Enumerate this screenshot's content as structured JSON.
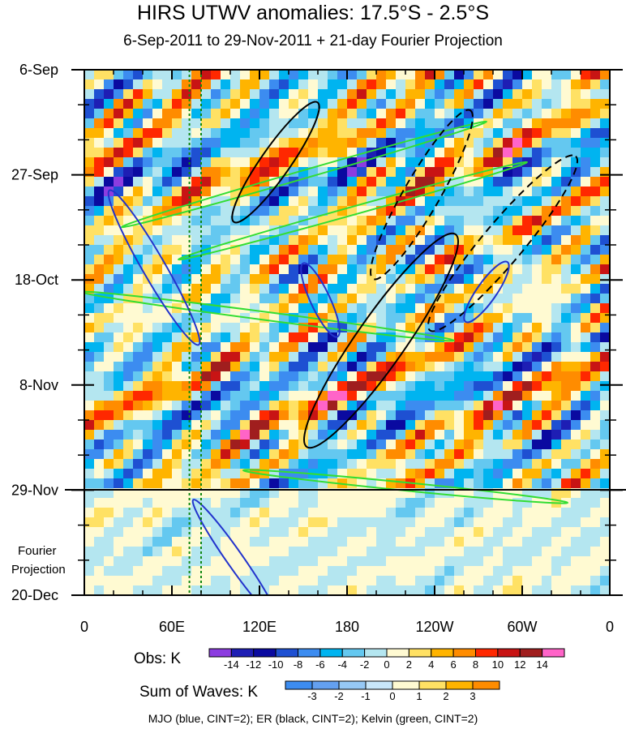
{
  "chart_data": {
    "type": "heatmap",
    "title": "HIRS UTWV anomalies: 17.5°S - 2.5°S",
    "subtitle": "6-Sep-2011 to 29-Nov-2011 + 21-day Fourier Projection",
    "x_ticks": [
      "0",
      "60E",
      "120E",
      "180",
      "120W",
      "60W",
      "0"
    ],
    "x_range": [
      0,
      360
    ],
    "y_ticks": [
      "6-Sep",
      "27-Sep",
      "18-Oct",
      "8-Nov",
      "29-Nov",
      "20-Dec"
    ],
    "y_range": [
      "2011-09-06",
      "2011-12-20"
    ],
    "observation_end": "2011-11-29",
    "projection_label_1": "Fourier",
    "projection_label_2": "Projection",
    "obs_colorbar": {
      "title": "Obs: K",
      "levels": [
        "-14",
        "-12",
        "-10",
        "-8",
        "-6",
        "-4",
        "-2",
        "0",
        "2",
        "4",
        "6",
        "8",
        "10",
        "12",
        "14"
      ],
      "colors": [
        "#8c3ce0",
        "#1e1eb4",
        "#0a0aa0",
        "#1e50d2",
        "#3c8cf0",
        "#00b4f0",
        "#64c8f0",
        "#b4e6f0",
        "#fffad2",
        "#ffe164",
        "#ffb400",
        "#ff8c00",
        "#ff2800",
        "#c81414",
        "#a01e1e",
        "#ff64c8"
      ]
    },
    "waves_colorbar": {
      "title": "Sum of Waves: K",
      "levels": [
        "-3",
        "-2",
        "-1",
        "0",
        "1",
        "2",
        "3"
      ],
      "colors": [
        "#3c8cf0",
        "#64a0f0",
        "#96c8f5",
        "#c8e6fa",
        "#fffad2",
        "#ffe164",
        "#ffb400",
        "#ff8c00"
      ]
    },
    "reference_lines_lon": [
      72,
      80
    ],
    "footnote": "MJO (blue, CINT=2); ER (black, CINT=2); Kelvin (green, CINT=2)"
  }
}
